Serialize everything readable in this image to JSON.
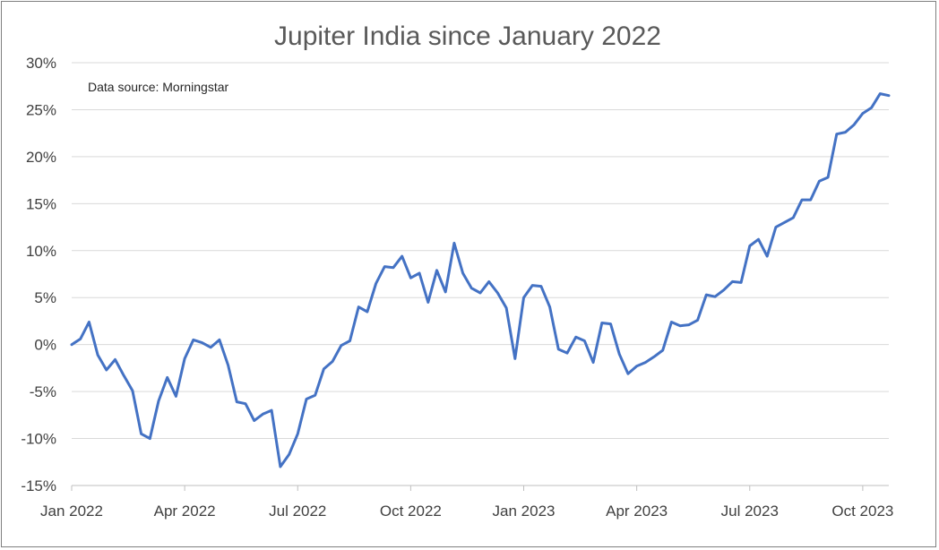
{
  "chart_data": {
    "type": "line",
    "title": "Jupiter India since January 2022",
    "annotation": "Data source: Morningstar",
    "xlabel": "",
    "ylabel": "",
    "ylim": [
      -15,
      30
    ],
    "y_ticks": [
      30,
      25,
      20,
      15,
      10,
      5,
      0,
      -5,
      -10,
      -15
    ],
    "y_tick_labels": [
      "30%",
      "25%",
      "20%",
      "15%",
      "10%",
      "5%",
      "0%",
      "-5%",
      "-10%",
      "-15%"
    ],
    "x_tick_labels": [
      "Jan 2022",
      "Apr 2022",
      "Jul 2022",
      "Oct 2022",
      "Jan 2023",
      "Apr 2023",
      "Jul 2023",
      "Oct 2023"
    ],
    "x_tick_index": [
      0,
      13,
      26,
      39,
      52,
      65,
      78,
      91
    ],
    "grid": true,
    "line_color": "#4472c4",
    "series": [
      {
        "values": [
          0.0,
          0.6,
          2.4,
          -1.1,
          -2.7,
          -1.6,
          -3.3,
          -4.9,
          -9.5,
          -10.0,
          -6.0,
          -3.5,
          -5.5,
          -1.5,
          0.5,
          0.2,
          -0.3,
          0.5,
          -2.2,
          -6.1,
          -6.3,
          -8.1,
          -7.4,
          -7.0,
          -13.0,
          -11.7,
          -9.5,
          -5.8,
          -5.4,
          -2.6,
          -1.8,
          -0.1,
          0.4,
          4.0,
          3.5,
          6.5,
          8.3,
          8.2,
          9.4,
          7.1,
          7.6,
          4.5,
          7.9,
          5.6,
          10.8,
          7.6,
          6.0,
          5.5,
          6.7,
          5.5,
          3.9,
          -1.5,
          5.0,
          6.3,
          6.2,
          4.0,
          -0.5,
          -0.9,
          0.8,
          0.4,
          -1.9,
          2.3,
          2.2,
          -1.0,
          -3.1,
          -2.3,
          -1.9,
          -1.3,
          -0.6,
          2.4,
          2.0,
          2.1,
          2.6,
          5.3,
          5.1,
          5.8,
          6.7,
          6.6,
          10.5,
          11.2,
          9.4,
          12.5,
          13.0,
          13.5,
          15.4,
          15.4,
          17.4,
          17.8,
          22.4,
          22.6,
          23.4,
          24.6,
          25.2,
          26.7,
          26.5
        ]
      }
    ]
  }
}
